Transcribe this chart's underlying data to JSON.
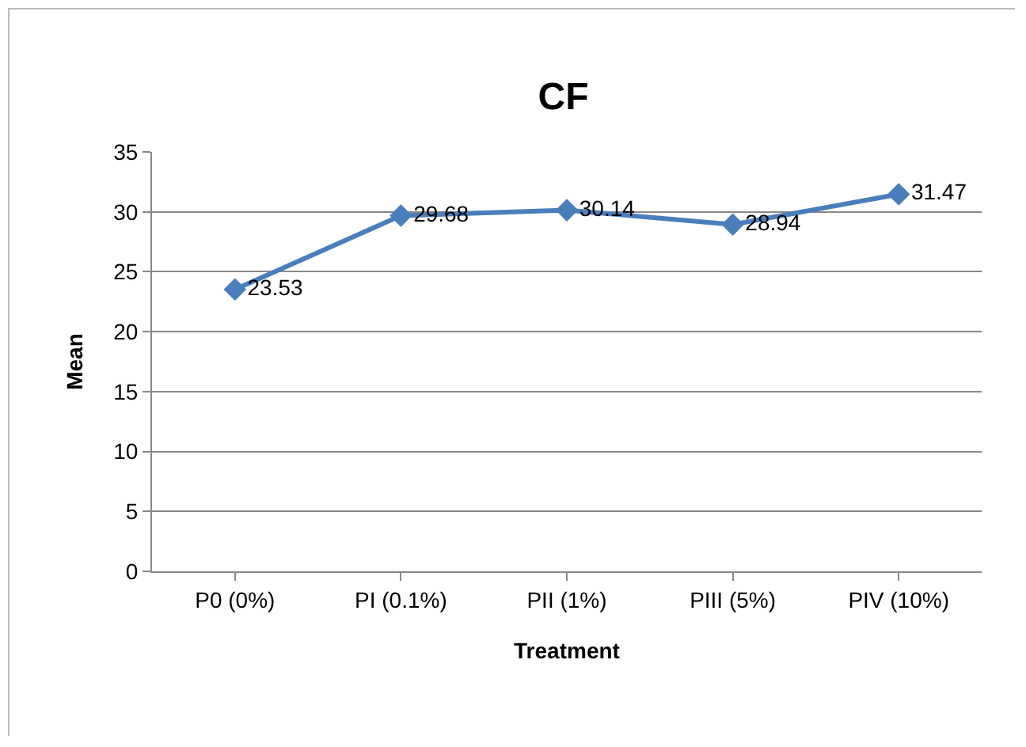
{
  "chart_data": {
    "type": "line",
    "title": "CF",
    "xlabel": "Treatment",
    "ylabel": "Mean",
    "categories": [
      "P0 (0%)",
      "PI (0.1%)",
      "PII (1%)",
      "PIII (5%)",
      "PIV (10%)"
    ],
    "series": [
      {
        "color": "#4a7ebb",
        "values": [
          23.53,
          29.68,
          30.14,
          28.94,
          31.47
        ]
      }
    ],
    "ylim": [
      0,
      35
    ],
    "yticks": [
      0,
      5,
      10,
      15,
      20,
      25,
      30,
      35
    ],
    "grid": "y",
    "marker": "diamond",
    "line_style": "solid",
    "data_labels": true
  }
}
